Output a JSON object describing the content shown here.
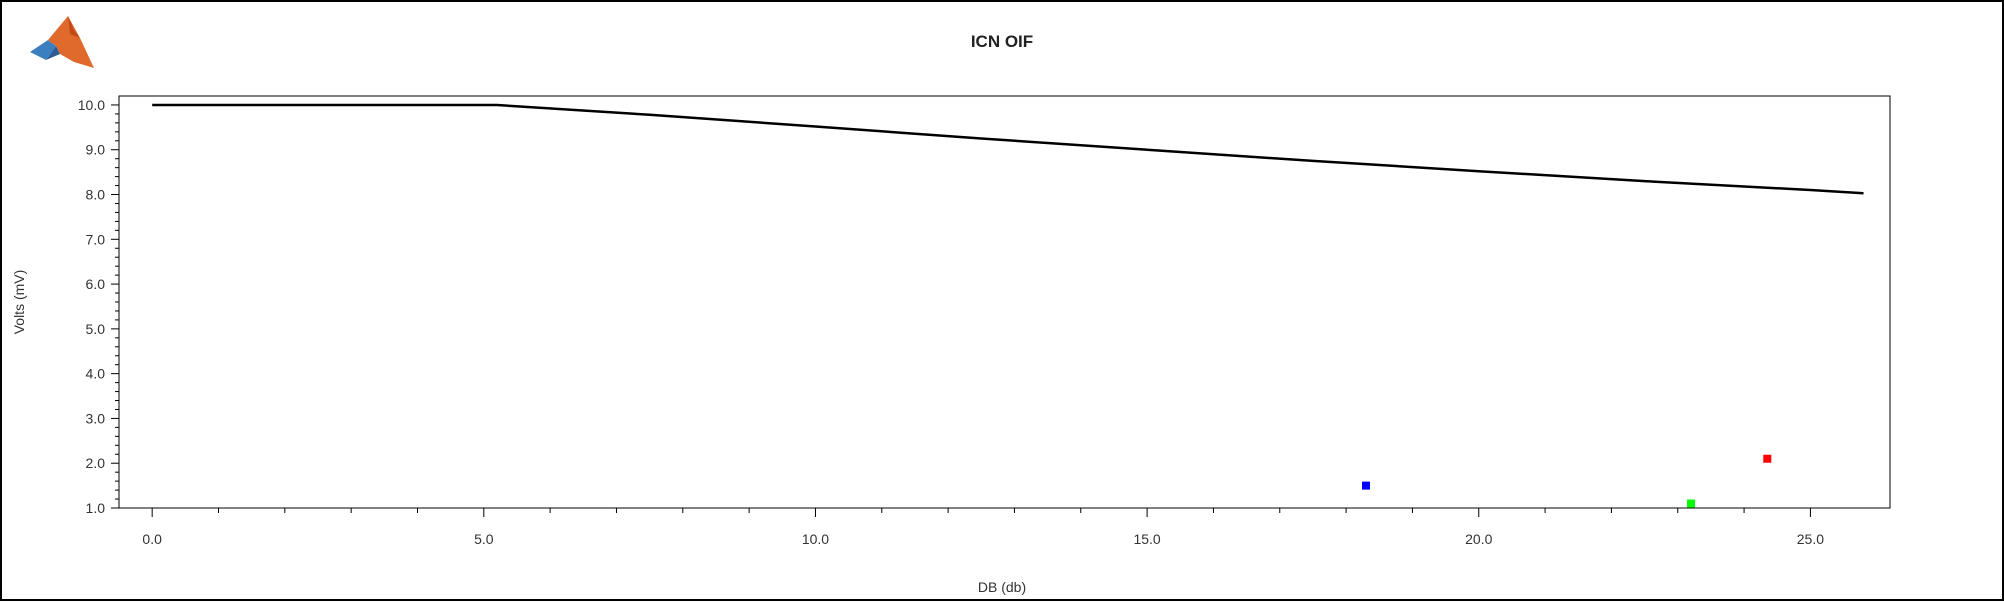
{
  "chart_data": {
    "type": "line",
    "title": "ICN OIF",
    "xlabel": "DB (db)",
    "ylabel": "Volts (mV)",
    "xlim": [
      -0.5,
      26.2
    ],
    "ylim": [
      1.0,
      10.2
    ],
    "x_ticks": [
      "0.0",
      "5.0",
      "10.0",
      "15.0",
      "20.0",
      "25.0"
    ],
    "y_ticks": [
      "1.0",
      "2.0",
      "3.0",
      "4.0",
      "5.0",
      "6.0",
      "7.0",
      "8.0",
      "9.0",
      "10.0"
    ],
    "grid": false,
    "series": [
      {
        "color": "#000000",
        "x": [
          0.0,
          5.2,
          7.5,
          10.0,
          12.5,
          15.0,
          17.5,
          20.0,
          22.5,
          25.0,
          25.8
        ],
        "y": [
          10.0,
          10.0,
          9.78,
          9.52,
          9.25,
          9.0,
          8.75,
          8.52,
          8.3,
          8.1,
          8.03
        ]
      }
    ],
    "points": [
      {
        "x": 18.3,
        "y": 1.5,
        "color": "#0000ff"
      },
      {
        "x": 23.2,
        "y": 1.1,
        "color": "#00ff00"
      },
      {
        "x": 24.35,
        "y": 2.1,
        "color": "#ff0000"
      }
    ]
  },
  "logo": {
    "icon": "matlab-logo-icon"
  }
}
